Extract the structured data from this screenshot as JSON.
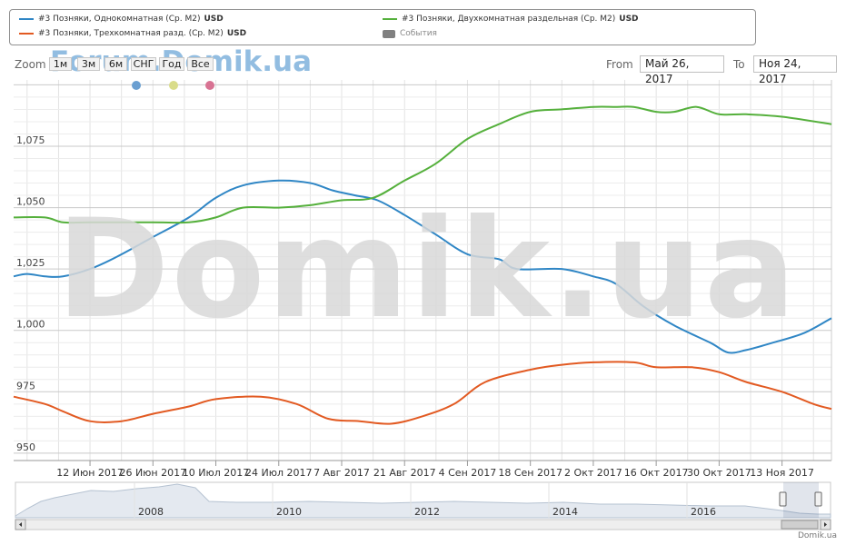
{
  "legend": {
    "items": [
      {
        "label": "#3 Позняки, Однокомнатная (Ср. М2)",
        "unit": "USD",
        "color": "#2f86c5"
      },
      {
        "label": "#3 Позняки, Двухкомнатная раздельная (Ср. М2)",
        "unit": "USD",
        "color": "#55b03c"
      },
      {
        "label": "#3 Позняки, Трехкомнатная разд. (Ср. М2)",
        "unit": "USD",
        "color": "#e25a22"
      }
    ],
    "events_label": "События"
  },
  "zoom": {
    "label": "Zoom",
    "buttons": [
      "1м",
      "3м",
      "6м",
      "СНГ",
      "Год",
      "Все"
    ]
  },
  "range": {
    "from_label": "From",
    "from_value": "Май 26, 2017",
    "to_label": "To",
    "to_value": "Ноя 24, 2017"
  },
  "watermarks": {
    "top": "Forum.Domik.ua",
    "center": "Domik.ua"
  },
  "credit": "Domik.ua",
  "navigator": {
    "year_labels": [
      "2008",
      "2010",
      "2012",
      "2014",
      "2016"
    ]
  },
  "colors": {
    "series_blue": "#2f86c5",
    "series_green": "#55b03c",
    "series_orange": "#e25a22",
    "dot_yellow": "#d9dc8a",
    "dot_pink": "#d87393"
  },
  "chart_data": {
    "type": "line",
    "x_tick_labels": [
      "12 Июн 2017",
      "26 Июн 2017",
      "10 Июл 2017",
      "24 Июл 2017",
      "7 Авг 2017",
      "21 Авг 2017",
      "4 Сен 2017",
      "18 Сен 2017",
      "2 Окт 2017",
      "16 Окт 2017",
      "30 Окт 2017",
      "13 Ноя 2017"
    ],
    "y_tick_labels": [
      "950",
      "975",
      "1,000",
      "1,025",
      "1,050",
      "1,075"
    ],
    "ylim": [
      947,
      1102
    ],
    "xlim": [
      "2017-05-26",
      "2017-11-24"
    ],
    "series": [
      {
        "name": "#3 Позняки, Однокомнатная (Ср. М2)",
        "color": "#2f86c5",
        "points": [
          [
            "2017-05-26",
            1022
          ],
          [
            "2017-05-29",
            1023
          ],
          [
            "2017-06-02",
            1022
          ],
          [
            "2017-06-06",
            1022
          ],
          [
            "2017-06-12",
            1025
          ],
          [
            "2017-06-18",
            1030
          ],
          [
            "2017-06-26",
            1038
          ],
          [
            "2017-07-04",
            1046
          ],
          [
            "2017-07-10",
            1054
          ],
          [
            "2017-07-16",
            1059
          ],
          [
            "2017-07-24",
            1061
          ],
          [
            "2017-07-31",
            1060
          ],
          [
            "2017-08-05",
            1057
          ],
          [
            "2017-08-10",
            1055
          ],
          [
            "2017-08-15",
            1053
          ],
          [
            "2017-08-21",
            1047
          ],
          [
            "2017-08-28",
            1039
          ],
          [
            "2017-09-04",
            1031
          ],
          [
            "2017-09-11",
            1029
          ],
          [
            "2017-09-15",
            1025
          ],
          [
            "2017-09-25",
            1025
          ],
          [
            "2017-10-02",
            1022
          ],
          [
            "2017-10-07",
            1019
          ],
          [
            "2017-10-13",
            1010
          ],
          [
            "2017-10-20",
            1002
          ],
          [
            "2017-10-28",
            995
          ],
          [
            "2017-11-01",
            991
          ],
          [
            "2017-11-05",
            992
          ],
          [
            "2017-11-11",
            995
          ],
          [
            "2017-11-18",
            999
          ],
          [
            "2017-11-24",
            1005
          ]
        ]
      },
      {
        "name": "#3 Позняки, Двухкомнатная раздельная (Ср. М2)",
        "color": "#55b03c",
        "points": [
          [
            "2017-05-26",
            1046
          ],
          [
            "2017-06-02",
            1046
          ],
          [
            "2017-06-06",
            1044
          ],
          [
            "2017-06-12",
            1044
          ],
          [
            "2017-06-26",
            1044
          ],
          [
            "2017-07-04",
            1044
          ],
          [
            "2017-07-10",
            1046
          ],
          [
            "2017-07-16",
            1050
          ],
          [
            "2017-07-24",
            1050
          ],
          [
            "2017-07-31",
            1051
          ],
          [
            "2017-08-07",
            1053
          ],
          [
            "2017-08-14",
            1054
          ],
          [
            "2017-08-21",
            1061
          ],
          [
            "2017-08-28",
            1068
          ],
          [
            "2017-09-04",
            1078
          ],
          [
            "2017-09-11",
            1084
          ],
          [
            "2017-09-18",
            1089
          ],
          [
            "2017-09-25",
            1090
          ],
          [
            "2017-10-02",
            1091
          ],
          [
            "2017-10-07",
            1091
          ],
          [
            "2017-10-11",
            1091
          ],
          [
            "2017-10-16",
            1089
          ],
          [
            "2017-10-20",
            1089
          ],
          [
            "2017-10-25",
            1091
          ],
          [
            "2017-10-30",
            1088
          ],
          [
            "2017-11-05",
            1088
          ],
          [
            "2017-11-13",
            1087
          ],
          [
            "2017-11-24",
            1084
          ]
        ]
      },
      {
        "name": "#3 Позняки, Трехкомнатная разд. (Ср. М2)",
        "color": "#e25a22",
        "points": [
          [
            "2017-05-26",
            973
          ],
          [
            "2017-06-02",
            970
          ],
          [
            "2017-06-06",
            967
          ],
          [
            "2017-06-12",
            963
          ],
          [
            "2017-06-19",
            963
          ],
          [
            "2017-06-26",
            966
          ],
          [
            "2017-07-04",
            969
          ],
          [
            "2017-07-10",
            972
          ],
          [
            "2017-07-20",
            973
          ],
          [
            "2017-07-28",
            970
          ],
          [
            "2017-08-04",
            964
          ],
          [
            "2017-08-11",
            963
          ],
          [
            "2017-08-18",
            962
          ],
          [
            "2017-08-25",
            965
          ],
          [
            "2017-09-01",
            970
          ],
          [
            "2017-09-08",
            979
          ],
          [
            "2017-09-18",
            984
          ],
          [
            "2017-09-25",
            986
          ],
          [
            "2017-10-02",
            987
          ],
          [
            "2017-10-11",
            987
          ],
          [
            "2017-10-16",
            985
          ],
          [
            "2017-10-24",
            985
          ],
          [
            "2017-10-30",
            983
          ],
          [
            "2017-11-05",
            979
          ],
          [
            "2017-11-13",
            975
          ],
          [
            "2017-11-20",
            970
          ],
          [
            "2017-11-24",
            968
          ]
        ]
      }
    ],
    "grid": true
  }
}
